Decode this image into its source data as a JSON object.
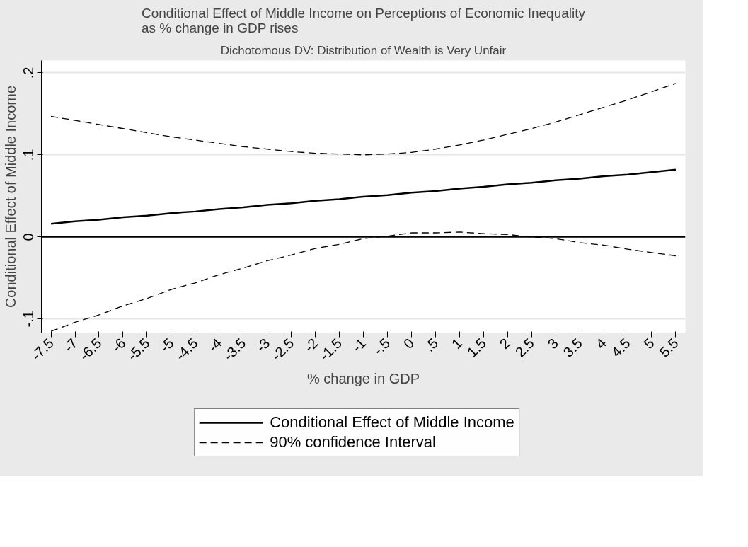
{
  "chart_data": {
    "type": "line",
    "title": "Conditional Effect of Middle Income on Perceptions of Economic Inequality\nas % change in GDP rises",
    "subtitle": "Dichotomous DV: Distribution of Wealth is Very Unfair",
    "xlabel": "% change in GDP",
    "ylabel": "Conditional Effect of Middle Income",
    "x": [
      -7.5,
      -7,
      -6.5,
      -6,
      -5.5,
      -5,
      -4.5,
      -4,
      -3.5,
      -3,
      -2.5,
      -2,
      -1.5,
      -1,
      -0.5,
      0,
      0.5,
      1,
      1.5,
      2,
      2.5,
      3,
      3.5,
      4,
      4.5,
      5,
      5.5
    ],
    "series": [
      {
        "name": "Conditional Effect of Middle Income",
        "color": "#000000",
        "line_style": "solid",
        "values": [
          0.016,
          0.019,
          0.021,
          0.024,
          0.026,
          0.029,
          0.031,
          0.034,
          0.036,
          0.039,
          0.041,
          0.044,
          0.046,
          0.049,
          0.051,
          0.054,
          0.056,
          0.059,
          0.061,
          0.064,
          0.066,
          0.069,
          0.071,
          0.074,
          0.076,
          0.079,
          0.082
        ]
      },
      {
        "name": "90% confidence Interval",
        "color": "#000000",
        "line_style": "dashed",
        "values": [
          0.147,
          0.142,
          0.137,
          0.132,
          0.127,
          0.122,
          0.118,
          0.114,
          0.11,
          0.107,
          0.104,
          0.102,
          0.101,
          0.1,
          0.101,
          0.103,
          0.107,
          0.112,
          0.118,
          0.125,
          0.132,
          0.14,
          0.149,
          0.158,
          0.167,
          0.177,
          0.187
        ]
      },
      {
        "color": "#000000",
        "line_style": "dashed",
        "values": [
          -0.115,
          -0.104,
          -0.095,
          -0.084,
          -0.075,
          -0.064,
          -0.056,
          -0.046,
          -0.038,
          -0.029,
          -0.022,
          -0.014,
          -0.009,
          -0.002,
          0.001,
          0.005,
          0.005,
          0.006,
          0.004,
          0.003,
          0.0,
          -0.002,
          -0.007,
          -0.01,
          -0.015,
          -0.019,
          -0.023
        ]
      }
    ],
    "xlim": [
      -7.7,
      5.7
    ],
    "ylim": [
      -0.117,
      0.215
    ],
    "xticks": [
      -7.5,
      -7,
      -6.5,
      -6,
      -5.5,
      -5,
      -4.5,
      -4,
      -3.5,
      -3,
      -2.5,
      -2,
      -1.5,
      -1,
      {
        "value": -0.5,
        "label": "-.5"
      },
      0,
      {
        "value": 0.5,
        "label": ".5"
      },
      1,
      1.5,
      2,
      2.5,
      3,
      3.5,
      4,
      4.5,
      5,
      5.5
    ],
    "yticks": [
      {
        "value": -0.1,
        "label": "-.1"
      },
      0,
      {
        "value": 0.1,
        "label": ".1"
      },
      {
        "value": 0.2,
        "label": ".2"
      }
    ],
    "ref_lines": [
      {
        "axis": "y",
        "value": 0,
        "color": "#000000"
      }
    ],
    "grid": "y",
    "legend": "bottom",
    "marker": "none"
  }
}
